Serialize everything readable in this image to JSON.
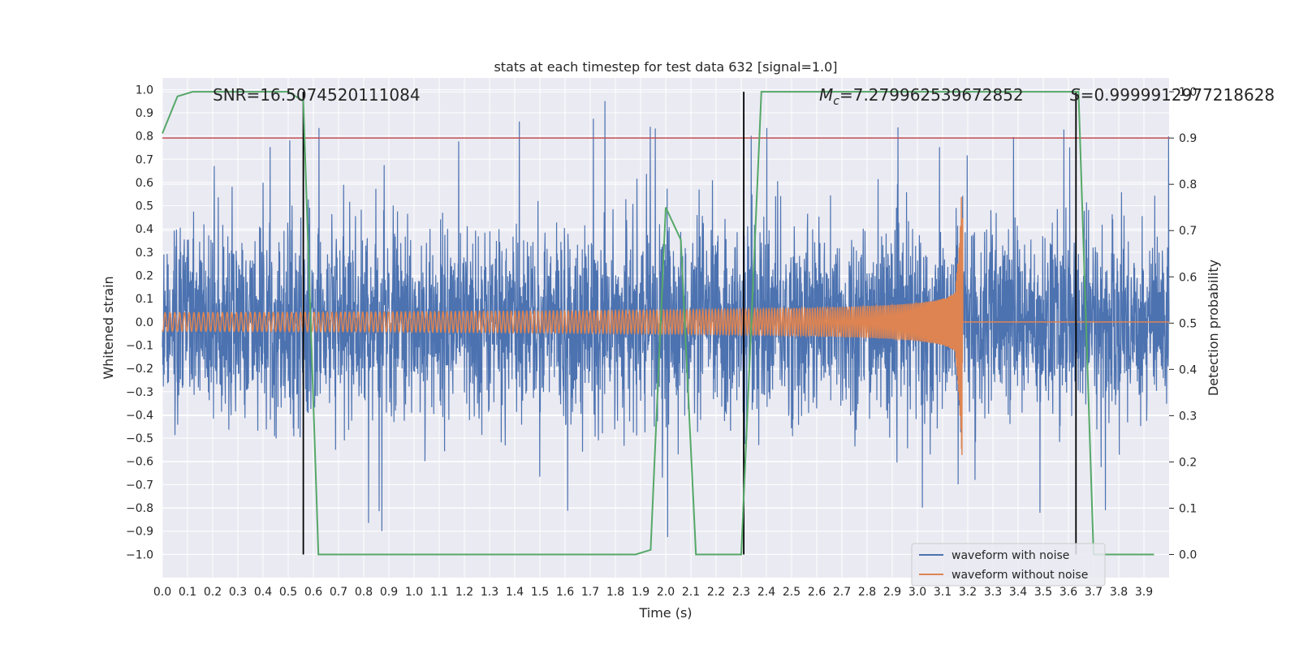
{
  "chart_data": {
    "type": "line",
    "title": "stats at each timestep for test data 632 [signal=1.0]",
    "xlabel": "Time (s)",
    "ylabel": "Whitened strain",
    "y2label": "Detection probability",
    "xlim": [
      0.0,
      4.0
    ],
    "ylim": [
      -1.1,
      1.05
    ],
    "y2lim": [
      -0.05,
      1.03
    ],
    "grid": true,
    "legend_position": "lower-right",
    "x_ticks": [
      "0.0",
      "0.1",
      "0.2",
      "0.3",
      "0.4",
      "0.5",
      "0.6",
      "0.7",
      "0.8",
      "0.9",
      "1.0",
      "1.1",
      "1.2",
      "1.3",
      "1.4",
      "1.5",
      "1.6",
      "1.7",
      "1.8",
      "1.9",
      "2.0",
      "2.1",
      "2.2",
      "2.3",
      "2.4",
      "2.5",
      "2.6",
      "2.7",
      "2.8",
      "2.9",
      "3.0",
      "3.1",
      "3.2",
      "3.3",
      "3.4",
      "3.5",
      "3.6",
      "3.7",
      "3.8",
      "3.9"
    ],
    "y_ticks": [
      "1.0",
      "0.9",
      "0.8",
      "0.7",
      "0.6",
      "0.5",
      "0.4",
      "0.3",
      "0.2",
      "0.1",
      "0.0",
      "−0.1",
      "−0.2",
      "−0.3",
      "−0.4",
      "−0.5",
      "−0.6",
      "−0.7",
      "−0.8",
      "−0.9",
      "−1.0"
    ],
    "y2_ticks": [
      "1.0",
      "0.9",
      "0.8",
      "0.7",
      "0.6",
      "0.5",
      "0.4",
      "0.3",
      "0.2",
      "0.1",
      "0.0"
    ],
    "annotations": {
      "snr": "SNR=16.5074520111084",
      "mc_symbol": "M",
      "mc_sub": "c",
      "mc_value": "=7.279962539672852",
      "s_symbol": "S",
      "s_value": "=0.9999912977218628"
    },
    "series": [
      {
        "name": "waveform with noise",
        "color": "#4c72b0",
        "description": "whitened noisy strain, roughly ±0.4 to ±1.0 amplitude across full span"
      },
      {
        "name": "waveform without noise",
        "color": "#dd8452",
        "chirp": {
          "start_time": 0.0,
          "merger_time": 3.18,
          "start_amplitude": 0.04,
          "peak_amplitude": 0.58,
          "start_frequency_hz": 52,
          "peak_frequency_hz": 260
        }
      },
      {
        "name": "detection probability",
        "color": "#55a868",
        "axis": "y2",
        "x": [
          0.0,
          0.06,
          0.12,
          0.18,
          0.24,
          0.3,
          0.36,
          0.42,
          0.5,
          0.56,
          0.62,
          0.68,
          0.74,
          0.8,
          0.86,
          0.92,
          0.98,
          1.04,
          1.1,
          1.16,
          1.22,
          1.28,
          1.34,
          1.4,
          1.46,
          1.52,
          1.58,
          1.64,
          1.7,
          1.76,
          1.82,
          1.88,
          1.94,
          2.0,
          2.06,
          2.12,
          2.18,
          2.24,
          2.3,
          2.38,
          2.44,
          2.5,
          2.56,
          2.62,
          2.68,
          2.74,
          2.8,
          2.86,
          2.92,
          2.98,
          3.04,
          3.1,
          3.16,
          3.22,
          3.28,
          3.34,
          3.4,
          3.46,
          3.52,
          3.58,
          3.64,
          3.7,
          3.76,
          3.82,
          3.88,
          3.94
        ],
        "y": [
          0.91,
          0.99,
          1.0,
          1.0,
          1.0,
          1.0,
          1.0,
          1.0,
          1.0,
          0.98,
          0.0,
          0.0,
          0.0,
          0.0,
          0.0,
          0.0,
          0.0,
          0.0,
          0.0,
          0.0,
          0.0,
          0.0,
          0.0,
          0.0,
          0.0,
          0.0,
          0.0,
          0.0,
          0.0,
          0.0,
          0.0,
          0.0,
          0.01,
          0.75,
          0.68,
          0.0,
          0.0,
          0.0,
          0.0,
          1.0,
          1.0,
          1.0,
          1.0,
          1.0,
          1.0,
          1.0,
          1.0,
          1.0,
          1.0,
          1.0,
          1.0,
          1.0,
          1.0,
          1.0,
          1.0,
          1.0,
          1.0,
          1.0,
          1.0,
          1.0,
          1.0,
          0.0,
          0.0,
          0.0,
          0.0,
          0.0
        ]
      }
    ],
    "threshold": {
      "axis": "y2",
      "value": 0.9,
      "color": "#c44e52"
    },
    "vertical_lines": {
      "x": [
        0.56,
        2.31,
        3.63
      ],
      "y2_range": [
        0.0,
        1.0
      ],
      "color": "#000000"
    },
    "legend": [
      {
        "label": "waveform with noise",
        "color": "#4c72b0"
      },
      {
        "label": "waveform without noise",
        "color": "#dd8452"
      }
    ]
  }
}
